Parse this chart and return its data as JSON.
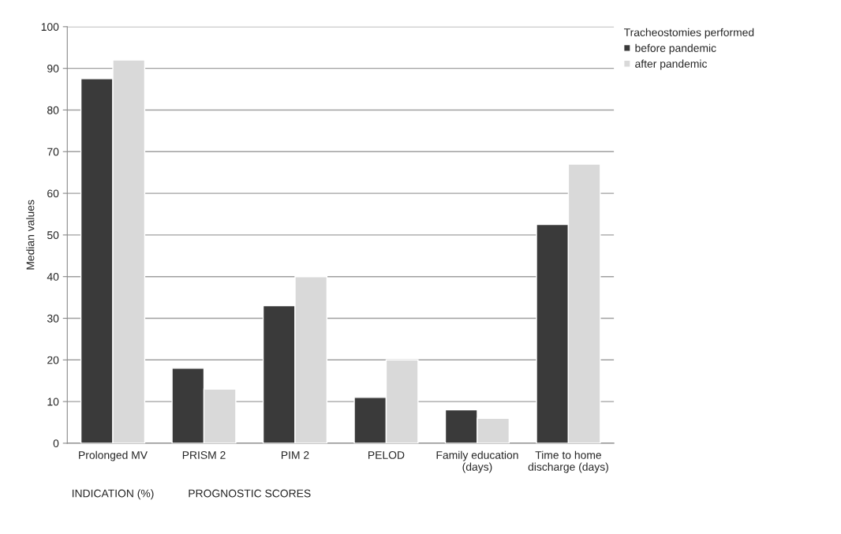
{
  "chart_data": {
    "type": "bar",
    "ylabel": "Median values",
    "legend_title": "Tracheostomies performed",
    "categories": [
      "Prolonged MV",
      "PRISM 2",
      "PIM 2",
      "PELOD",
      "Family education\n(days)",
      "Time to home\ndischarge (days)"
    ],
    "series": [
      {
        "name": "before pandemic",
        "color": "#3a3a3a",
        "values": [
          87.5,
          18,
          33,
          11,
          8,
          52.5
        ]
      },
      {
        "name": "after pandemic",
        "color": "#d9d9d9",
        "values": [
          92,
          13,
          40,
          20,
          6,
          67
        ]
      }
    ],
    "ylim": [
      0,
      100
    ],
    "yticks": [
      0,
      10,
      20,
      30,
      40,
      50,
      60,
      70,
      80,
      90,
      100
    ],
    "grid": "y",
    "legend": "top right",
    "annotations": [
      "INDICATION (%)",
      "PROGNOSTIC SCORES"
    ]
  }
}
